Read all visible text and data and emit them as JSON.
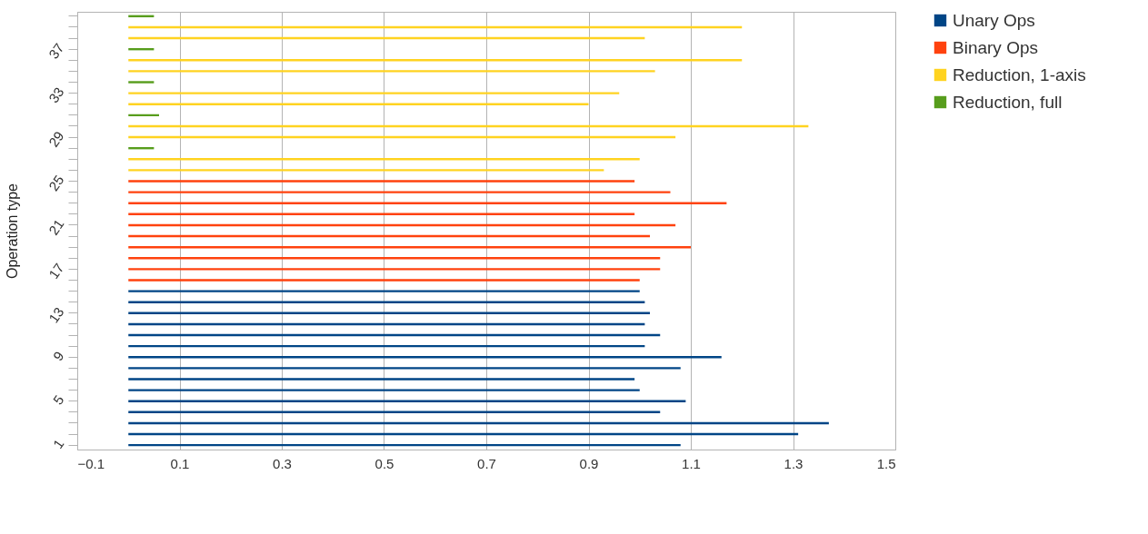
{
  "chart_data": {
    "type": "bar",
    "orientation": "horizontal",
    "ylabel": "Operation type",
    "categories": [
      null,
      null,
      null,
      "37",
      null,
      null,
      null,
      "33",
      null,
      null,
      null,
      "29",
      null,
      null,
      null,
      "25",
      null,
      null,
      null,
      "21",
      null,
      null,
      null,
      "17",
      null,
      null,
      null,
      "13",
      null,
      null,
      null,
      "9",
      null,
      null,
      null,
      "5",
      null,
      null,
      null,
      "1"
    ],
    "series": [
      {
        "name": "Unary Ops",
        "color": "#004586",
        "values": [
          null,
          null,
          null,
          null,
          null,
          null,
          null,
          null,
          null,
          null,
          null,
          null,
          null,
          null,
          null,
          null,
          null,
          null,
          null,
          null,
          null,
          null,
          null,
          null,
          null,
          1.0,
          1.01,
          1.02,
          1.01,
          1.04,
          1.01,
          1.16,
          1.08,
          0.99,
          1.0,
          1.09,
          1.04,
          1.37,
          1.31,
          1.08
        ]
      },
      {
        "name": "Binary Ops",
        "color": "#ff420e",
        "values": [
          null,
          null,
          null,
          null,
          null,
          null,
          null,
          null,
          null,
          null,
          null,
          null,
          null,
          null,
          null,
          0.99,
          1.06,
          1.17,
          0.99,
          1.07,
          1.02,
          1.1,
          1.04,
          1.04,
          1.0,
          null,
          null,
          null,
          null,
          null,
          null,
          null,
          null,
          null,
          null,
          null,
          null,
          null,
          null,
          null
        ]
      },
      {
        "name": "Reduction, 1-axis",
        "color": "#ffd320",
        "values": [
          null,
          1.2,
          1.01,
          null,
          1.2,
          1.03,
          null,
          0.96,
          0.9,
          null,
          1.33,
          1.07,
          null,
          1.0,
          0.93,
          null,
          null,
          null,
          null,
          null,
          null,
          null,
          null,
          null,
          null,
          null,
          null,
          null,
          null,
          null,
          null,
          null,
          null,
          null,
          null,
          null,
          null,
          null,
          null,
          null
        ]
      },
      {
        "name": "Reduction, full",
        "color": "#579d1c",
        "values": [
          0.05,
          null,
          null,
          0.05,
          null,
          null,
          0.05,
          null,
          null,
          0.06,
          null,
          null,
          0.05,
          null,
          null,
          null,
          null,
          null,
          null,
          null,
          null,
          null,
          null,
          null,
          null,
          null,
          null,
          null,
          null,
          null,
          null,
          null,
          null,
          null,
          null,
          null,
          null,
          null,
          null,
          null
        ]
      }
    ],
    "xlim": [
      -0.1,
      1.5
    ],
    "xticks": [
      -0.1,
      0.1,
      0.3,
      0.5,
      0.7,
      0.9,
      1.1,
      1.3,
      1.5
    ],
    "grid": "x",
    "legend": "right"
  }
}
